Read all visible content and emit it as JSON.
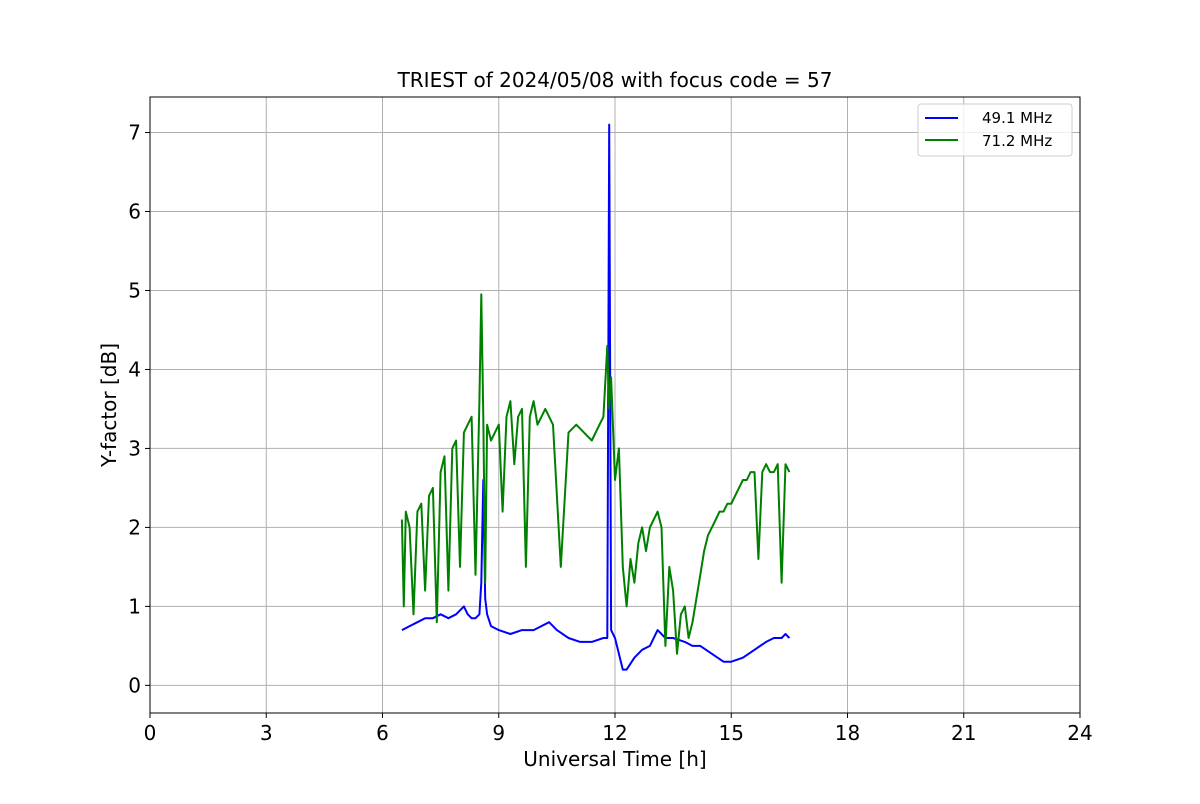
{
  "chart_data": {
    "type": "line",
    "title": "TRIEST of 2024/05/08 with focus code = 57",
    "xlabel": "Universal Time [h]",
    "ylabel": "Y-factor [dB]",
    "xlim": [
      0,
      24
    ],
    "ylim": [
      -0.35,
      7.45
    ],
    "xticks": [
      0,
      3,
      6,
      9,
      12,
      15,
      18,
      21,
      24
    ],
    "yticks": [
      0,
      1,
      2,
      3,
      4,
      5,
      6,
      7
    ],
    "grid": true,
    "legend_position": "top-right",
    "series": [
      {
        "name": "49.1 MHz",
        "color": "#0000ff",
        "x": [
          6.5,
          6.7,
          6.9,
          7.1,
          7.3,
          7.5,
          7.7,
          7.9,
          8.1,
          8.2,
          8.3,
          8.4,
          8.5,
          8.55,
          8.6,
          8.65,
          8.7,
          8.8,
          9.0,
          9.3,
          9.6,
          9.9,
          10.1,
          10.3,
          10.5,
          10.8,
          11.1,
          11.4,
          11.7,
          11.8,
          11.85,
          11.9,
          12.0,
          12.1,
          12.2,
          12.3,
          12.5,
          12.7,
          12.9,
          13.1,
          13.3,
          13.5,
          13.8,
          14.0,
          14.2,
          14.5,
          14.8,
          15.0,
          15.3,
          15.6,
          15.9,
          16.1,
          16.3,
          16.4,
          16.5
        ],
        "values": [
          0.7,
          0.75,
          0.8,
          0.85,
          0.85,
          0.9,
          0.85,
          0.9,
          1.0,
          0.9,
          0.85,
          0.85,
          0.9,
          1.3,
          2.6,
          1.1,
          0.9,
          0.75,
          0.7,
          0.65,
          0.7,
          0.7,
          0.75,
          0.8,
          0.7,
          0.6,
          0.55,
          0.55,
          0.6,
          0.6,
          7.1,
          0.7,
          0.6,
          0.4,
          0.2,
          0.2,
          0.35,
          0.45,
          0.5,
          0.7,
          0.6,
          0.6,
          0.55,
          0.5,
          0.5,
          0.4,
          0.3,
          0.3,
          0.35,
          0.45,
          0.55,
          0.6,
          0.6,
          0.65,
          0.6
        ]
      },
      {
        "name": "71.2 MHz",
        "color": "#008000",
        "x": [
          6.5,
          6.55,
          6.6,
          6.7,
          6.8,
          6.9,
          7.0,
          7.1,
          7.2,
          7.3,
          7.4,
          7.5,
          7.6,
          7.7,
          7.8,
          7.9,
          8.0,
          8.1,
          8.2,
          8.3,
          8.4,
          8.5,
          8.55,
          8.6,
          8.65,
          8.7,
          8.8,
          8.9,
          9.0,
          9.1,
          9.2,
          9.3,
          9.4,
          9.5,
          9.6,
          9.7,
          9.8,
          9.9,
          10.0,
          10.2,
          10.4,
          10.6,
          10.8,
          11.0,
          11.2,
          11.4,
          11.6,
          11.7,
          11.8,
          11.85,
          11.9,
          12.0,
          12.1,
          12.2,
          12.3,
          12.4,
          12.5,
          12.6,
          12.7,
          12.8,
          12.9,
          13.0,
          13.1,
          13.2,
          13.3,
          13.4,
          13.5,
          13.6,
          13.7,
          13.8,
          13.9,
          14.0,
          14.1,
          14.2,
          14.3,
          14.4,
          14.5,
          14.6,
          14.7,
          14.8,
          14.9,
          15.0,
          15.1,
          15.2,
          15.3,
          15.4,
          15.5,
          15.6,
          15.7,
          15.8,
          15.9,
          16.0,
          16.1,
          16.2,
          16.3,
          16.4,
          16.5
        ],
        "values": [
          2.1,
          1.0,
          2.2,
          2.0,
          0.9,
          2.2,
          2.3,
          1.2,
          2.4,
          2.5,
          0.8,
          2.7,
          2.9,
          1.2,
          3.0,
          3.1,
          1.5,
          3.2,
          3.3,
          3.4,
          1.4,
          3.6,
          4.95,
          3.4,
          1.3,
          3.3,
          3.1,
          3.2,
          3.3,
          2.2,
          3.4,
          3.6,
          2.8,
          3.4,
          3.5,
          1.5,
          3.4,
          3.6,
          3.3,
          3.5,
          3.3,
          1.5,
          3.2,
          3.3,
          3.2,
          3.1,
          3.3,
          3.4,
          4.3,
          3.5,
          3.9,
          2.6,
          3.0,
          1.5,
          1.0,
          1.6,
          1.3,
          1.8,
          2.0,
          1.7,
          2.0,
          2.1,
          2.2,
          2.0,
          0.5,
          1.5,
          1.2,
          0.4,
          0.9,
          1.0,
          0.6,
          0.8,
          1.1,
          1.4,
          1.7,
          1.9,
          2.0,
          2.1,
          2.2,
          2.2,
          2.3,
          2.3,
          2.4,
          2.5,
          2.6,
          2.6,
          2.7,
          2.7,
          1.6,
          2.7,
          2.8,
          2.7,
          2.7,
          2.8,
          1.3,
          2.8,
          2.7
        ]
      }
    ]
  }
}
